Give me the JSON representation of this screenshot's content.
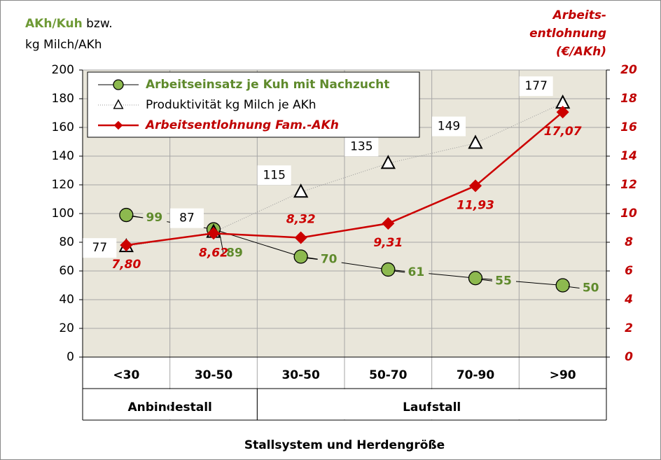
{
  "chart_data": {
    "type": "line",
    "ylabel": [
      "AKh/Kuh",
      "bzw.",
      "kg Milch/AKh"
    ],
    "y2label": [
      "Arbeits-",
      "entlohnung",
      "(€/AKh)"
    ],
    "xlabel": "Stallsystem und Herdengröße",
    "categories": [
      "<30",
      "30-50",
      "30-50",
      "50-70",
      "70-90",
      ">90"
    ],
    "category_groups": [
      "Anbindestall",
      "Anbindestall",
      "Laufstall",
      "Laufstall",
      "Laufstall",
      "Laufstall"
    ],
    "ylim": [
      0,
      200
    ],
    "yticks": [
      0,
      20,
      40,
      60,
      80,
      100,
      120,
      140,
      160,
      180,
      200
    ],
    "y2lim": [
      0,
      20
    ],
    "y2ticks": [
      0,
      2,
      4,
      6,
      8,
      10,
      12,
      14,
      16,
      18,
      20
    ],
    "grid": true,
    "series": [
      {
        "name": "Arbeitseinsatz je Kuh mit Nachzucht",
        "color": "#8db94f",
        "marker": "circle",
        "values": [
          99,
          89,
          70,
          61,
          55,
          50
        ]
      },
      {
        "name": "Produktivität kg Milch je AKh",
        "color": "#ffffff",
        "marker": "triangle",
        "values": [
          77,
          87,
          115,
          135,
          149,
          177
        ]
      },
      {
        "name": "Arbeitsentlohnung Fam.-AKh",
        "color": "#cc0000",
        "marker": "diamond",
        "axis": "y2",
        "values": [
          7.8,
          8.62,
          8.32,
          9.31,
          11.93,
          17.07
        ],
        "value_labels": [
          "7,80",
          "8,62",
          "8,32",
          "9,31",
          "11,93",
          "17,07"
        ]
      }
    ]
  }
}
